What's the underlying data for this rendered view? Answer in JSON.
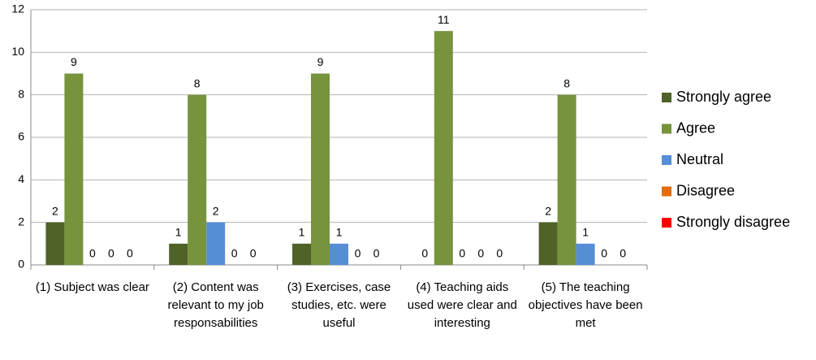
{
  "chart_data": {
    "type": "bar",
    "categories": [
      "(1) Subject was clear",
      "(2) Content was relevant to my job responsabilities",
      "(3) Exercises, case studies, etc. were useful",
      "(4) Teaching aids used were clear and interesting",
      "(5) The teaching objectives have been met"
    ],
    "series": [
      {
        "name": "Strongly agree",
        "color": "#4f6228",
        "values": [
          2,
          1,
          1,
          0,
          2
        ]
      },
      {
        "name": "Agree",
        "color": "#77933c",
        "values": [
          9,
          8,
          9,
          11,
          8
        ]
      },
      {
        "name": "Neutral",
        "color": "#558ed5",
        "values": [
          0,
          2,
          1,
          0,
          1
        ]
      },
      {
        "name": "Disagree",
        "color": "#e46c0a",
        "values": [
          0,
          0,
          0,
          0,
          0
        ]
      },
      {
        "name": "Strongly disagree",
        "color": "#ff0000",
        "values": [
          0,
          0,
          0,
          0,
          0
        ]
      }
    ],
    "ylim": [
      0,
      12
    ],
    "yticks": [
      0,
      2,
      4,
      6,
      8,
      10,
      12
    ],
    "grid": true,
    "legend": "right"
  }
}
